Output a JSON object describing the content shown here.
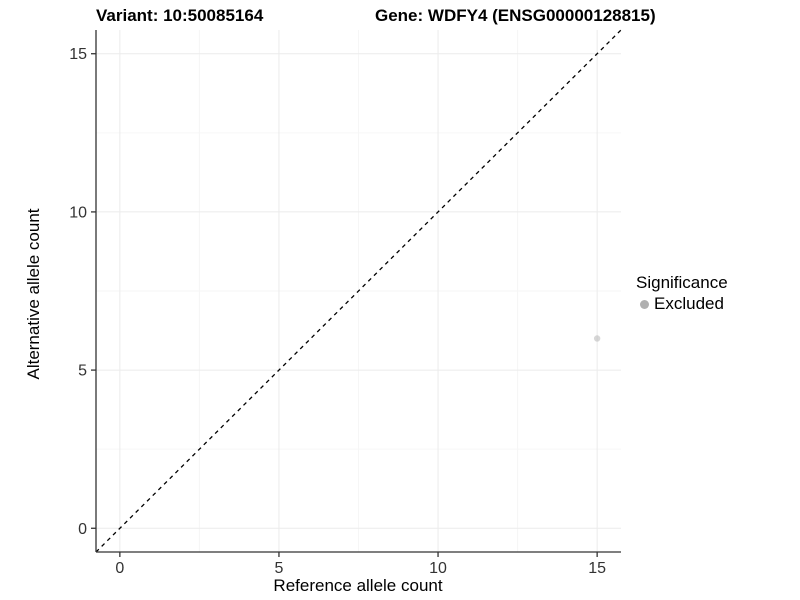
{
  "titles": {
    "variant": "Variant: 10:50085164",
    "gene": "Gene: WDFY4 (ENSG00000128815)"
  },
  "chart_data": {
    "type": "scatter",
    "xlabel": "Reference allele count",
    "ylabel": "Alternative allele count",
    "xlim": [
      -0.75,
      15.75
    ],
    "ylim": [
      -0.75,
      15.75
    ],
    "xticks": [
      0,
      5,
      10,
      15
    ],
    "yticks": [
      0,
      5,
      10,
      15
    ],
    "minor_ticks": [
      2.5,
      7.5,
      12.5
    ],
    "grid": true,
    "points": [
      {
        "x": 15,
        "y": 6,
        "series": "Excluded"
      }
    ],
    "abline": {
      "slope": 1,
      "intercept": 0,
      "style": "dashed"
    },
    "legend": {
      "position": "right",
      "title": "Significance",
      "entries": [
        {
          "label": "Excluded",
          "color": "#b0b0b0"
        }
      ]
    }
  },
  "colors": {
    "grid_major": "#ebebeb",
    "grid_minor": "#f6f6f6",
    "axis_line": "#333333",
    "tick_label": "#333333",
    "abline": "#000000",
    "point": "#b0b0b0",
    "background": "#ffffff"
  }
}
